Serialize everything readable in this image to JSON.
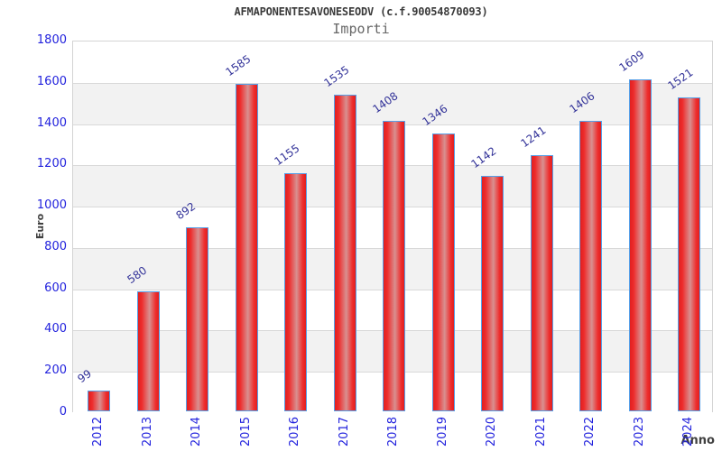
{
  "header": {
    "title": "AFMAPONENTESAVONESEODV (c.f.90054870093)",
    "subtitle": "Importi"
  },
  "chart_data": {
    "type": "bar",
    "title": "AFMAPONENTESAVONESEODV (c.f.90054870093)",
    "subtitle": "Importi",
    "categories": [
      "2012",
      "2013",
      "2014",
      "2015",
      "2016",
      "2017",
      "2018",
      "2019",
      "2020",
      "2021",
      "2022",
      "2023",
      "2024"
    ],
    "values": [
      99,
      580,
      892,
      1585,
      1155,
      1535,
      1408,
      1346,
      1142,
      1241,
      1406,
      1609,
      1521
    ],
    "xlabel": "Anno",
    "ylabel": "Euro",
    "ylim": [
      0,
      1800
    ],
    "ytick_step": 200,
    "grid": "horizontal",
    "bands": "alternating-gray",
    "legend": "none",
    "colors": {
      "bar_edge_red": "#e02020",
      "bar_bright_red": "#ee2c2c",
      "bar_mid_light": "#d89090",
      "bar_border": "#56a0e8",
      "tick_label_blue": "#2222dd",
      "value_label_navy": "#333399",
      "band_gray": "#f2f2f2",
      "gridline_gray": "#d9d9d9",
      "axis_text_dark": "#404040"
    }
  }
}
